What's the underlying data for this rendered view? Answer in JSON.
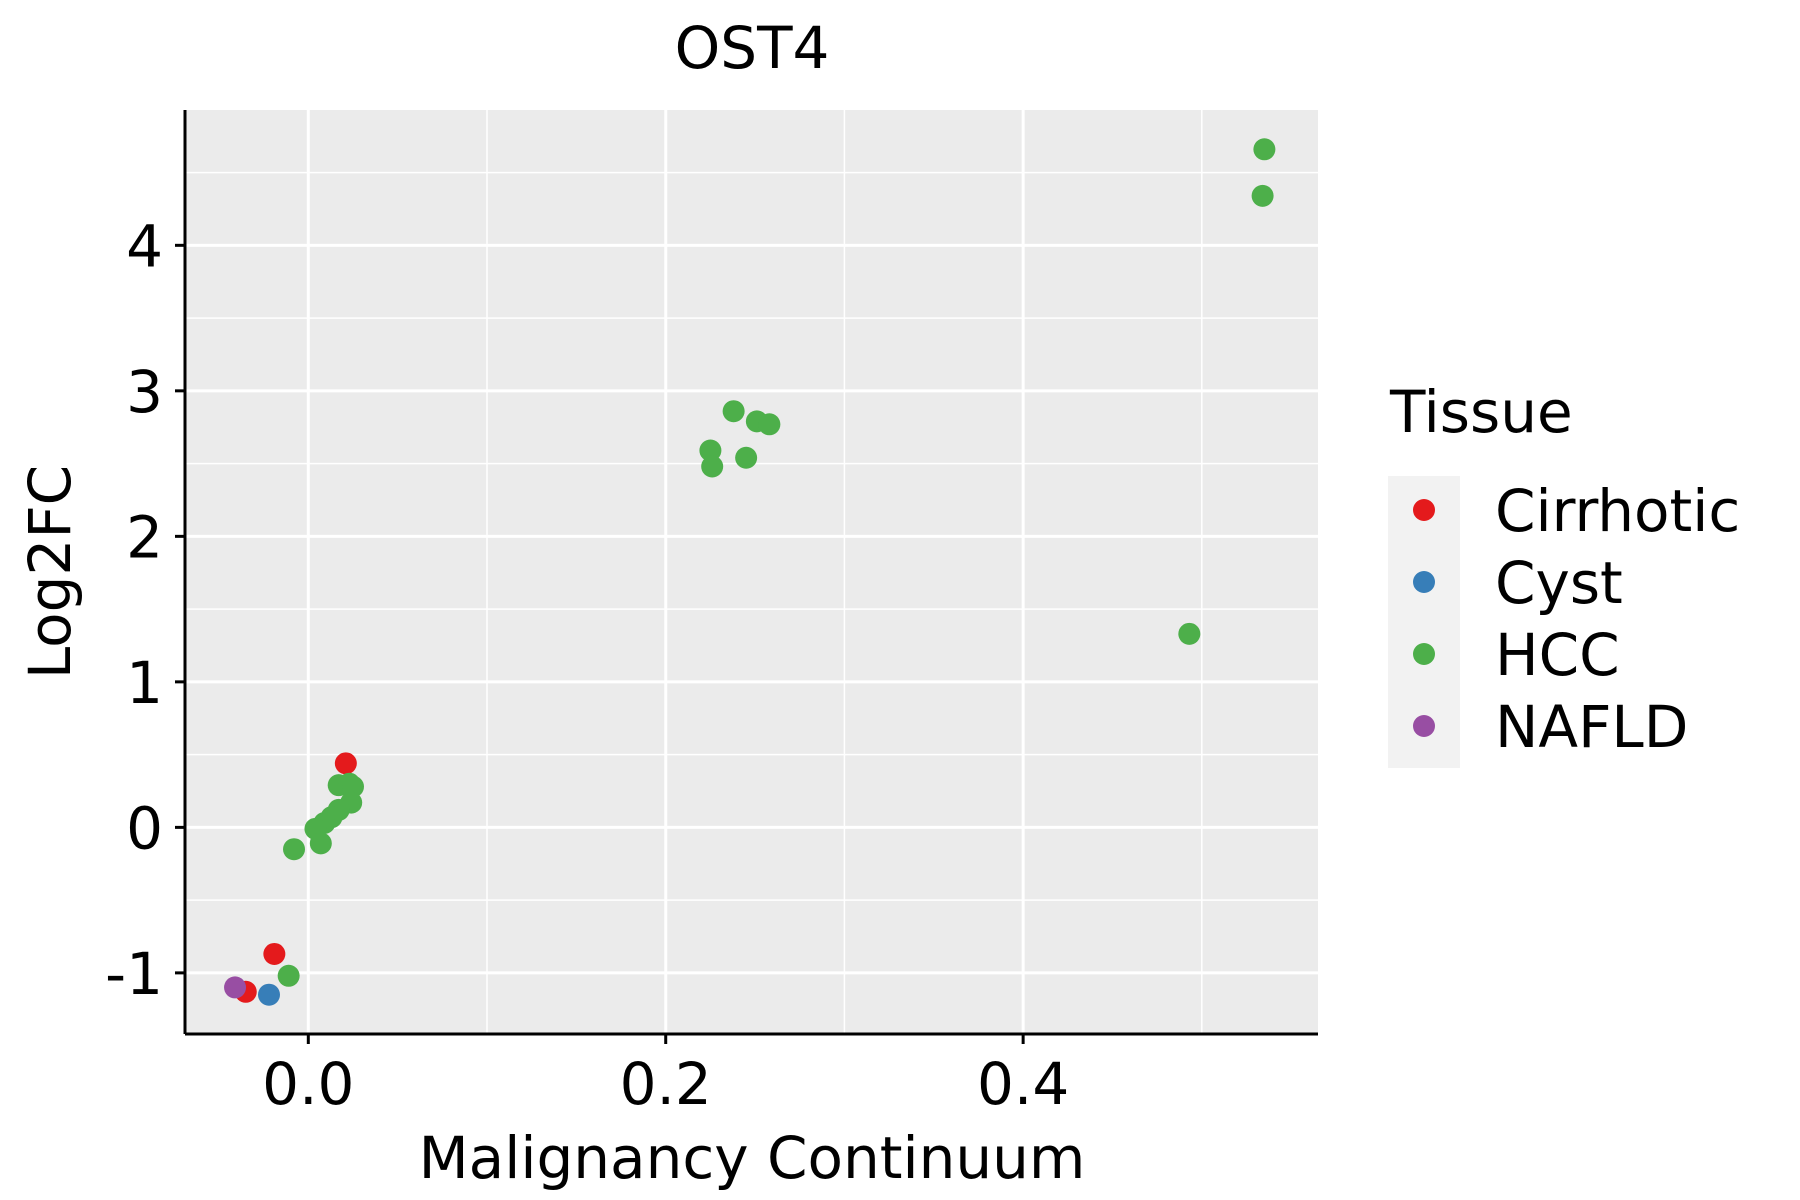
{
  "chart_data": {
    "type": "scatter",
    "title": "OST4",
    "xlabel": "Malignancy Continuum",
    "ylabel": "Log2FC",
    "xlim": [
      -0.069,
      0.565
    ],
    "ylim": [
      -1.42,
      4.93
    ],
    "x_ticks": [
      0.0,
      0.2,
      0.4
    ],
    "x_tick_labels": [
      "0.0",
      "0.2",
      "0.4"
    ],
    "y_ticks": [
      -1,
      0,
      1,
      2,
      3,
      4
    ],
    "y_tick_labels": [
      "-1",
      "0",
      "1",
      "2",
      "3",
      "4"
    ],
    "grid": true,
    "legend": {
      "title": "Tissue",
      "position": "right",
      "entries": [
        {
          "label": "Cirrhotic",
          "color": "#E41A1C"
        },
        {
          "label": "Cyst",
          "color": "#377EB8"
        },
        {
          "label": "HCC",
          "color": "#4DAF4A"
        },
        {
          "label": "NAFLD",
          "color": "#984EA3"
        }
      ]
    },
    "series": [
      {
        "name": "Cirrhotic",
        "color": "#E41A1C",
        "points": [
          {
            "x": 0.021,
            "y": 0.44
          },
          {
            "x": -0.019,
            "y": -0.87
          },
          {
            "x": -0.035,
            "y": -1.13
          }
        ]
      },
      {
        "name": "Cyst",
        "color": "#377EB8",
        "points": [
          {
            "x": -0.022,
            "y": -1.15
          }
        ]
      },
      {
        "name": "HCC",
        "color": "#4DAF4A",
        "points": [
          {
            "x": 0.535,
            "y": 4.66
          },
          {
            "x": 0.534,
            "y": 4.34
          },
          {
            "x": 0.238,
            "y": 2.86
          },
          {
            "x": 0.251,
            "y": 2.79
          },
          {
            "x": 0.258,
            "y": 2.77
          },
          {
            "x": 0.225,
            "y": 2.59
          },
          {
            "x": 0.245,
            "y": 2.54
          },
          {
            "x": 0.226,
            "y": 2.48
          },
          {
            "x": 0.493,
            "y": 1.33
          },
          {
            "x": 0.017,
            "y": 0.29
          },
          {
            "x": 0.023,
            "y": 0.3
          },
          {
            "x": 0.025,
            "y": 0.28
          },
          {
            "x": 0.024,
            "y": 0.17
          },
          {
            "x": 0.017,
            "y": 0.12
          },
          {
            "x": 0.013,
            "y": 0.07
          },
          {
            "x": 0.009,
            "y": 0.03
          },
          {
            "x": 0.004,
            "y": -0.01
          },
          {
            "x": 0.007,
            "y": -0.11
          },
          {
            "x": -0.008,
            "y": -0.15
          },
          {
            "x": -0.011,
            "y": -1.02
          }
        ]
      },
      {
        "name": "NAFLD",
        "color": "#984EA3",
        "points": [
          {
            "x": -0.041,
            "y": -1.1
          }
        ]
      }
    ]
  }
}
